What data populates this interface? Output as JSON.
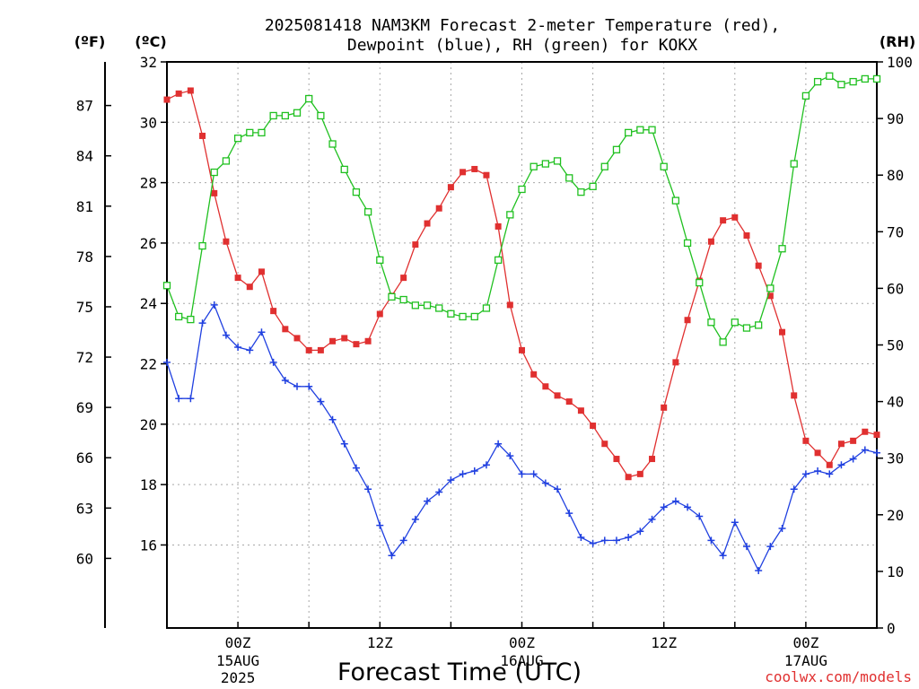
{
  "chart_data": {
    "type": "line",
    "title": "2025081418 NAM3KM Forecast 2-meter Temperature (red),",
    "subtitle": "Dewpoint (blue), RH (green) for KOKX",
    "xlabel": "Forecast Time (UTC)",
    "credit": "coolwx.com/models",
    "units": {
      "fahrenheit": "(ºF)",
      "celsius": "(ºC)",
      "rh": "(RH)"
    },
    "x_start_hour": 18,
    "x_end_hour": 78,
    "x_ticks": [
      {
        "hour": 24,
        "line1": "00Z",
        "line2": "15AUG",
        "line3": "2025"
      },
      {
        "hour": 36,
        "line1": "12Z",
        "line2": "",
        "line3": ""
      },
      {
        "hour": 48,
        "line1": "00Z",
        "line2": "16AUG",
        "line3": ""
      },
      {
        "hour": 60,
        "line1": "12Z",
        "line2": "",
        "line3": ""
      },
      {
        "hour": 72,
        "line1": "00Z",
        "line2": "17AUG",
        "line3": ""
      }
    ],
    "ylim_c": [
      13.25,
      32
    ],
    "y_ticks_c": [
      "16",
      "18",
      "20",
      "22",
      "24",
      "26",
      "28",
      "30",
      "32"
    ],
    "y_ticks_f": [
      "60",
      "63",
      "66",
      "69",
      "72",
      "75",
      "78",
      "81",
      "84",
      "87"
    ],
    "ylim_rh": [
      0,
      100
    ],
    "y_ticks_rh": [
      "0",
      "10",
      "20",
      "30",
      "40",
      "50",
      "60",
      "70",
      "80",
      "90",
      "100"
    ],
    "grid": true,
    "series": [
      {
        "name": "Temperature",
        "axis": "celsius",
        "color": "#e03030",
        "marker": "filled-square",
        "values": [
          30.75,
          30.95,
          31.05,
          29.55,
          27.65,
          26.05,
          24.85,
          24.55,
          25.05,
          23.75,
          23.15,
          22.85,
          22.45,
          22.45,
          22.75,
          22.85,
          22.65,
          22.75,
          23.65,
          24.25,
          24.85,
          25.95,
          26.65,
          27.15,
          27.85,
          28.35,
          28.45,
          28.25,
          26.55,
          23.95,
          22.45,
          21.65,
          21.25,
          20.95,
          20.75,
          20.45,
          19.95,
          19.35,
          18.85,
          18.25,
          18.35,
          18.85,
          20.55,
          22.05,
          23.45,
          24.75,
          26.05,
          26.75,
          26.85,
          26.25,
          25.25,
          24.25,
          23.05,
          20.95,
          19.45,
          19.05,
          18.65,
          19.35,
          19.45,
          19.75,
          19.65
        ]
      },
      {
        "name": "Dewpoint",
        "axis": "celsius",
        "color": "#2040e0",
        "marker": "plus",
        "values": [
          22.05,
          20.85,
          20.85,
          23.35,
          23.95,
          22.95,
          22.55,
          22.45,
          23.05,
          22.05,
          21.45,
          21.25,
          21.25,
          20.75,
          20.15,
          19.35,
          18.55,
          17.85,
          16.65,
          15.65,
          16.15,
          16.85,
          17.45,
          17.75,
          18.15,
          18.35,
          18.45,
          18.65,
          19.35,
          18.95,
          18.35,
          18.35,
          18.05,
          17.85,
          17.05,
          16.25,
          16.05,
          16.15,
          16.15,
          16.25,
          16.45,
          16.85,
          17.25,
          17.45,
          17.25,
          16.95,
          16.15,
          15.65,
          16.75,
          15.95,
          15.15,
          15.95,
          16.55,
          17.85,
          18.35,
          18.45,
          18.35,
          18.65,
          18.85,
          19.15,
          19.05
        ]
      },
      {
        "name": "RH",
        "axis": "rh",
        "color": "#20c020",
        "marker": "open-square",
        "values": [
          60.5,
          55,
          54.5,
          67.5,
          80.5,
          82.5,
          86.5,
          87.5,
          87.5,
          90.5,
          90.5,
          91,
          93.5,
          90.5,
          85.5,
          81,
          77,
          73.5,
          65,
          58.5,
          58,
          57,
          57,
          56.5,
          55.5,
          55,
          55,
          56.5,
          65,
          73,
          77.5,
          81.5,
          82,
          82.5,
          79.5,
          77,
          78,
          81.5,
          84.5,
          87.5,
          88,
          88,
          81.5,
          75.5,
          68,
          61,
          54,
          50.5,
          54,
          53,
          53.5,
          60,
          67,
          82,
          94,
          96.5,
          97.5,
          96,
          96.5,
          97,
          97
        ]
      }
    ]
  }
}
